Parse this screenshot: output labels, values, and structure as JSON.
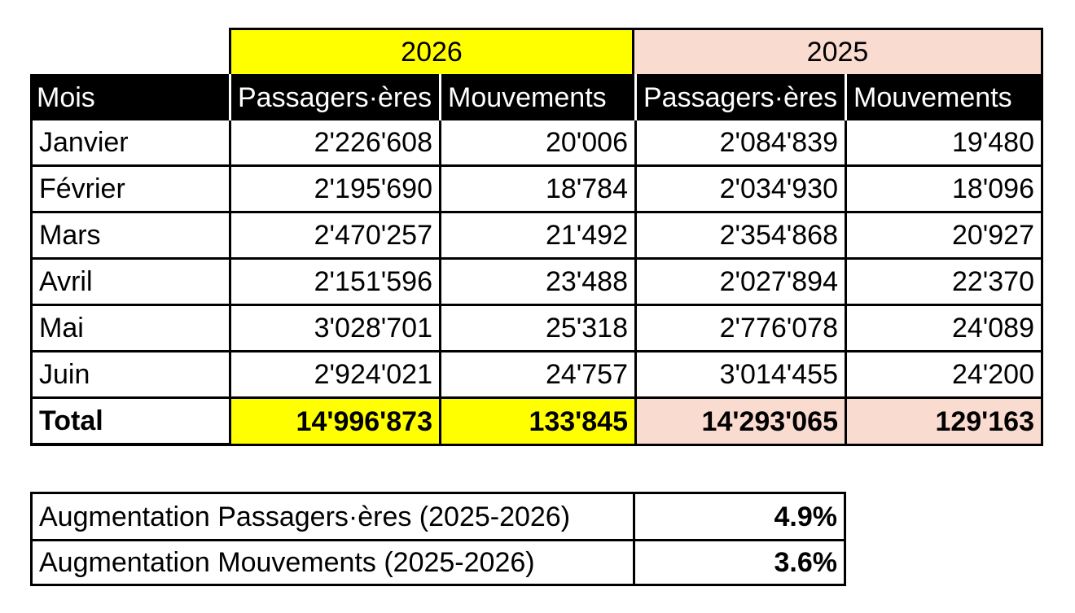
{
  "table": {
    "years": [
      "2026",
      "2025"
    ],
    "headers": [
      "Mois",
      "Passagers·ères",
      "Mouvements",
      "Passagers·ères",
      "Mouvements"
    ],
    "rows": [
      {
        "month": "Janvier",
        "p2026": "2'226'608",
        "m2026": "20'006",
        "p2025": "2'084'839",
        "m2025": "19'480"
      },
      {
        "month": "Février",
        "p2026": "2'195'690",
        "m2026": "18'784",
        "p2025": "2'034'930",
        "m2025": "18'096"
      },
      {
        "month": "Mars",
        "p2026": "2'470'257",
        "m2026": "21'492",
        "p2025": "2'354'868",
        "m2025": "20'927"
      },
      {
        "month": "Avril",
        "p2026": "2'151'596",
        "m2026": "23'488",
        "p2025": "2'027'894",
        "m2025": "22'370"
      },
      {
        "month": "Mai",
        "p2026": "3'028'701",
        "m2026": "25'318",
        "p2025": "2'776'078",
        "m2025": "24'089"
      },
      {
        "month": "Juin",
        "p2026": "2'924'021",
        "m2026": "24'757",
        "p2025": "3'014'455",
        "m2025": "24'200"
      }
    ],
    "total": {
      "label": "Total",
      "p2026": "14'996'873",
      "m2026": "133'845",
      "p2025": "14'293'065",
      "m2025": "129'163"
    }
  },
  "summary": [
    {
      "label": "Augmentation Passagers·ères (2025-2026)",
      "value": "4.9%"
    },
    {
      "label": "Augmentation Mouvements (2025-2026)",
      "value": "3.6%"
    }
  ],
  "colors": {
    "year_2026": "#ffff00",
    "year_2025": "#fadbd0",
    "header_bg": "#000000"
  }
}
